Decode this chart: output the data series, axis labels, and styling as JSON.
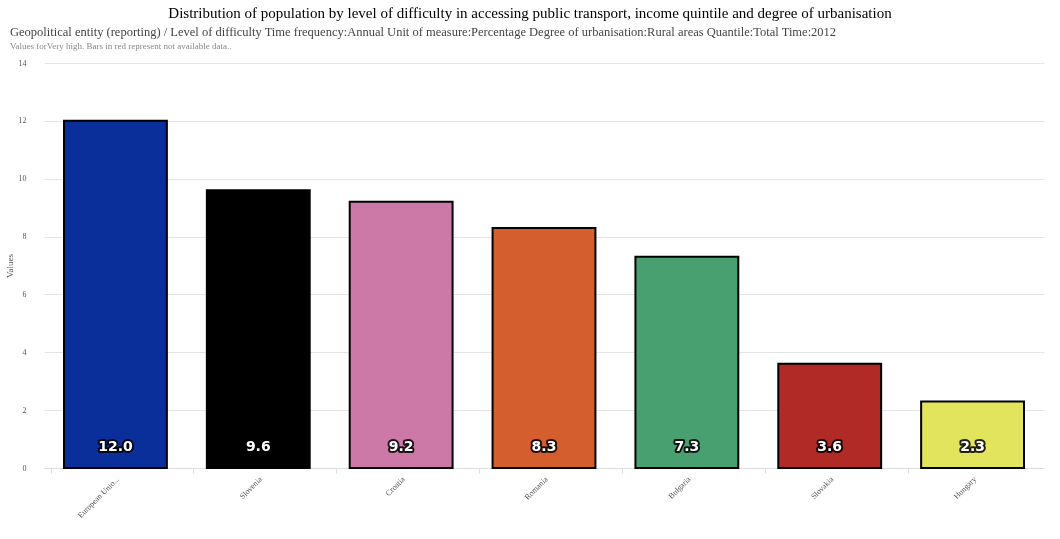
{
  "chart_data": {
    "type": "bar",
    "title": "Distribution of population by level of difficulty in accessing public transport, income quintile and degree of urbanisation",
    "subtitle": "Geopolitical entity (reporting) / Level of difficulty Time frequency:Annual Unit of measure:Percentage Degree of urbanisation:Rural areas Quantile:Total Time:2012",
    "annotations": [
      "Values forVery high. Bars in red represent not available data.."
    ],
    "ylabel": "Values",
    "categories": [
      "European Unio...",
      "Slovenia",
      "Croatia",
      "Romania",
      "Bulgaria",
      "Slovakia",
      "Hungary"
    ],
    "values": [
      12.0,
      9.6,
      9.2,
      8.3,
      7.3,
      3.6,
      2.3
    ],
    "colors": [
      "#0a2f9a",
      "#000000",
      "#cc79a7",
      "#d55e2f",
      "#48a070",
      "#b22a26",
      "#e2e45e"
    ],
    "value_labels": [
      "12.0",
      "9.6",
      "9.2",
      "8.3",
      "7.3",
      "3.6",
      "2.3"
    ],
    "ylim": [
      0,
      14
    ],
    "yticks": [
      0,
      2,
      4,
      6,
      8,
      10,
      12,
      14
    ],
    "grid": "y"
  }
}
